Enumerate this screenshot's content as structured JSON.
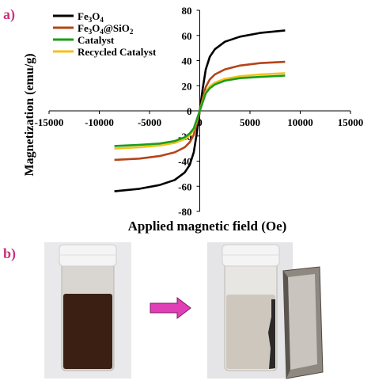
{
  "panel_a_label": "a)",
  "panel_b_label": "b)",
  "chart_data": {
    "type": "line",
    "xlabel": "Applied magnetic field (Oe)",
    "ylabel": "Magnetization (emu/g)",
    "xlim": [
      -15000,
      15000
    ],
    "ylim": [
      -80,
      80
    ],
    "xticks": [
      -15000,
      -10000,
      -5000,
      0,
      5000,
      10000,
      15000
    ],
    "yticks": [
      -80,
      -60,
      -40,
      -20,
      0,
      20,
      40,
      60,
      80
    ],
    "x_tick_labels": [
      "-15000",
      "-10000",
      "-5000",
      "0",
      "5000",
      "10000",
      "15000"
    ],
    "y_tick_labels": [
      "-80",
      "-60",
      "-40",
      "-20",
      "0",
      "20",
      "40",
      "60",
      "80"
    ],
    "grid": false,
    "legend_position": "top-left",
    "x": [
      -8500,
      -6000,
      -4000,
      -2500,
      -1500,
      -1000,
      -600,
      -300,
      0,
      300,
      600,
      1000,
      1500,
      2500,
      4000,
      6000,
      8500
    ],
    "series": [
      {
        "name": "Fe3O4",
        "legend_base": "Fe",
        "legend_sub1": "3",
        "legend_mid": "O",
        "legend_sub2": "4",
        "legend_tail": "",
        "legend_sub3": "",
        "color": "#000000",
        "values": [
          -64,
          -62,
          -59,
          -55,
          -49,
          -43,
          -33,
          -18,
          0,
          18,
          33,
          43,
          49,
          55,
          59,
          62,
          64
        ]
      },
      {
        "name": "Fe3O4@SiO2",
        "legend_base": "Fe",
        "legend_sub1": "3",
        "legend_mid": "O",
        "legend_sub2": "4",
        "legend_tail": "@SiO",
        "legend_sub3": "2",
        "color": "#b5441a",
        "values": [
          -39,
          -38,
          -36,
          -33,
          -29,
          -25,
          -19,
          -10,
          0,
          10,
          19,
          25,
          29,
          33,
          36,
          38,
          39
        ]
      },
      {
        "name": "Catalyst",
        "legend_base": "Catalyst",
        "legend_sub1": "",
        "legend_mid": "",
        "legend_sub2": "",
        "legend_tail": "",
        "legend_sub3": "",
        "color": "#1a9e1a",
        "values": [
          -28,
          -27,
          -26,
          -24,
          -21,
          -18,
          -14,
          -7,
          0,
          7,
          14,
          18,
          21,
          24,
          26,
          27,
          28
        ]
      },
      {
        "name": "Recycled Catalyst",
        "legend_base": "Recycled Catalyst",
        "legend_sub1": "",
        "legend_mid": "",
        "legend_sub2": "",
        "legend_tail": "",
        "legend_sub3": "",
        "color": "#f2c21b",
        "values": [
          -30,
          -29,
          -27.5,
          -25.5,
          -22.5,
          -19.5,
          -15,
          -8,
          0,
          8,
          15,
          19.5,
          22.5,
          25.5,
          27.5,
          29,
          30
        ]
      }
    ]
  },
  "photos": {
    "left_description_icon": "vial-dispersed-icon",
    "arrow_icon": "right-arrow-icon",
    "right_description_icon": "vial-magnet-separated-icon",
    "arrow_color": "#e03fb6",
    "cap_color": "#f4f4f4",
    "suspension_color": "#3a1f12",
    "clear_liquid_color": "#c9c1b6",
    "magnet_color": "#8f8880"
  }
}
